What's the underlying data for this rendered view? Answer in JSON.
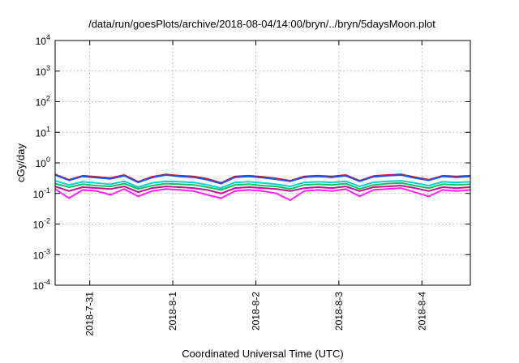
{
  "chart_data": {
    "type": "line",
    "title": "/data/run/goesPlots/archive/2018-08-04/14:00/bryn/../bryn/5daysMoon.plot",
    "xlabel": "Coordinated Universal Time (UTC)",
    "ylabel": "cGy/day",
    "yscale": "log",
    "ylim": [
      0.0001,
      10000
    ],
    "y_ticks": [
      {
        "value": 0.0001,
        "base": "10",
        "exp": "-4"
      },
      {
        "value": 0.001,
        "base": "10",
        "exp": "-3"
      },
      {
        "value": 0.01,
        "base": "10",
        "exp": "-2"
      },
      {
        "value": 0.1,
        "base": "10",
        "exp": "-1"
      },
      {
        "value": 1,
        "base": "10",
        "exp": "0"
      },
      {
        "value": 10,
        "base": "10",
        "exp": "1"
      },
      {
        "value": 100,
        "base": "10",
        "exp": "2"
      },
      {
        "value": 1000,
        "base": "10",
        "exp": "3"
      },
      {
        "value": 10000,
        "base": "10",
        "exp": "4"
      }
    ],
    "x_range": [
      "2018-07-30T14:00",
      "2018-08-04T14:00"
    ],
    "x_ticks": [
      {
        "value": "2018-07-31T00:00",
        "label": "2018-7-31"
      },
      {
        "value": "2018-08-01T00:00",
        "label": "2018-8-1"
      },
      {
        "value": "2018-08-02T00:00",
        "label": "2018-8-2"
      },
      {
        "value": "2018-08-03T00:00",
        "label": "2018-8-3"
      },
      {
        "value": "2018-08-04T00:00",
        "label": "2018-8-4"
      }
    ],
    "grid": true,
    "legend": "none",
    "x": [
      "2018-07-30T14:00",
      "2018-07-30T18:00",
      "2018-07-30T22:00",
      "2018-07-31T02:00",
      "2018-07-31T06:00",
      "2018-07-31T10:00",
      "2018-07-31T14:00",
      "2018-07-31T18:00",
      "2018-07-31T22:00",
      "2018-08-01T02:00",
      "2018-08-01T06:00",
      "2018-08-01T10:00",
      "2018-08-01T14:00",
      "2018-08-01T18:00",
      "2018-08-01T22:00",
      "2018-08-02T02:00",
      "2018-08-02T06:00",
      "2018-08-02T10:00",
      "2018-08-02T14:00",
      "2018-08-02T18:00",
      "2018-08-02T22:00",
      "2018-08-03T02:00",
      "2018-08-03T06:00",
      "2018-08-03T10:00",
      "2018-08-03T14:00",
      "2018-08-03T18:00",
      "2018-08-03T22:00",
      "2018-08-04T02:00",
      "2018-08-04T06:00",
      "2018-08-04T10:00",
      "2018-08-04T14:00"
    ],
    "series": [
      {
        "color": "#e01010",
        "values": [
          0.42,
          0.28,
          0.38,
          0.35,
          0.32,
          0.4,
          0.24,
          0.35,
          0.42,
          0.38,
          0.36,
          0.3,
          0.22,
          0.36,
          0.38,
          0.35,
          0.31,
          0.26,
          0.36,
          0.38,
          0.36,
          0.4,
          0.26,
          0.37,
          0.4,
          0.42,
          0.34,
          0.28,
          0.38,
          0.36,
          0.38
        ]
      },
      {
        "color": "#2050f0",
        "values": [
          0.4,
          0.27,
          0.36,
          0.33,
          0.3,
          0.38,
          0.23,
          0.33,
          0.4,
          0.36,
          0.34,
          0.28,
          0.21,
          0.34,
          0.36,
          0.33,
          0.29,
          0.25,
          0.34,
          0.36,
          0.34,
          0.38,
          0.25,
          0.35,
          0.38,
          0.4,
          0.32,
          0.27,
          0.36,
          0.34,
          0.36
        ]
      },
      {
        "color": "#00d0d0",
        "values": [
          0.26,
          0.19,
          0.24,
          0.22,
          0.2,
          0.25,
          0.16,
          0.22,
          0.25,
          0.24,
          0.23,
          0.19,
          0.15,
          0.23,
          0.24,
          0.22,
          0.2,
          0.17,
          0.23,
          0.24,
          0.23,
          0.25,
          0.17,
          0.23,
          0.25,
          0.26,
          0.22,
          0.18,
          0.24,
          0.23,
          0.24
        ]
      },
      {
        "color": "#10c060",
        "values": [
          0.21,
          0.16,
          0.2,
          0.18,
          0.17,
          0.21,
          0.14,
          0.18,
          0.21,
          0.2,
          0.19,
          0.16,
          0.13,
          0.19,
          0.2,
          0.18,
          0.17,
          0.14,
          0.19,
          0.2,
          0.19,
          0.21,
          0.14,
          0.19,
          0.21,
          0.22,
          0.18,
          0.15,
          0.2,
          0.19,
          0.2
        ]
      },
      {
        "color": "#c01090",
        "values": [
          0.17,
          0.12,
          0.16,
          0.15,
          0.14,
          0.17,
          0.11,
          0.15,
          0.17,
          0.16,
          0.15,
          0.13,
          0.1,
          0.15,
          0.16,
          0.15,
          0.14,
          0.12,
          0.15,
          0.16,
          0.15,
          0.17,
          0.12,
          0.16,
          0.17,
          0.18,
          0.15,
          0.12,
          0.16,
          0.15,
          0.16
        ]
      },
      {
        "color": "#ff20ff",
        "values": [
          0.14,
          0.07,
          0.13,
          0.12,
          0.09,
          0.14,
          0.08,
          0.12,
          0.14,
          0.13,
          0.12,
          0.09,
          0.07,
          0.12,
          0.13,
          0.12,
          0.1,
          0.06,
          0.12,
          0.13,
          0.12,
          0.14,
          0.08,
          0.13,
          0.14,
          0.15,
          0.11,
          0.08,
          0.13,
          0.12,
          0.13
        ]
      }
    ]
  }
}
